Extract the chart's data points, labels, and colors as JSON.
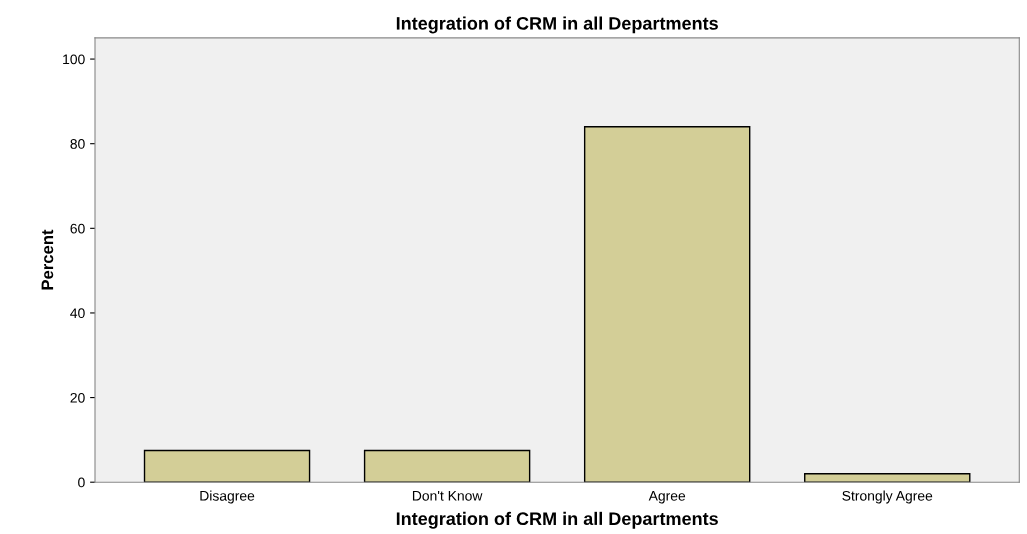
{
  "chart_data": {
    "type": "bar",
    "title": "Integration of CRM in all Departments",
    "xlabel": "Integration of CRM in all Departments",
    "ylabel": "Percent",
    "categories": [
      "Disagree",
      "Don't Know",
      "Agree",
      "Strongly Agree"
    ],
    "values": [
      7.5,
      7.5,
      84,
      2
    ],
    "color": "#d3ce97",
    "ylim": [
      0,
      105
    ],
    "yticks": [
      0,
      20,
      40,
      60,
      80,
      100
    ],
    "grid": false
  }
}
